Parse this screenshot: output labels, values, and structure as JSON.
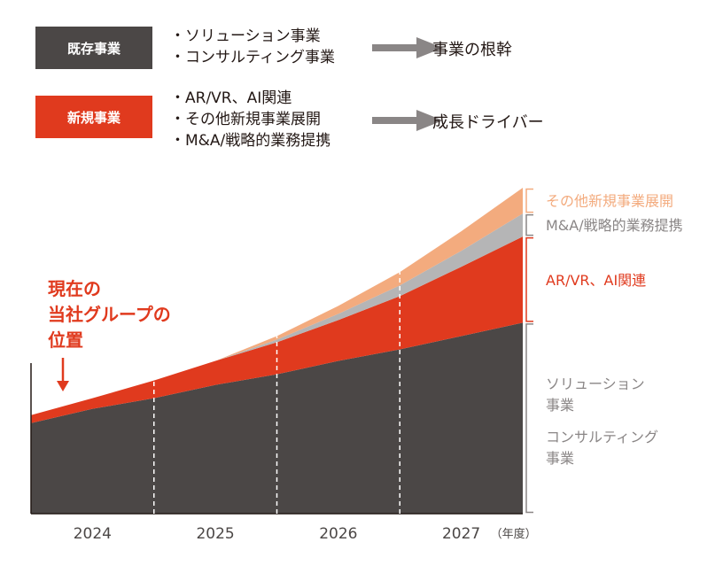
{
  "legend": {
    "existing": {
      "badge": "既存事業",
      "items": [
        "ソリューション事業",
        "コンサルティング事業"
      ],
      "result": "事業の根幹"
    },
    "new": {
      "badge": "新規事業",
      "items": [
        "AR/VR、AI関連",
        "その他新規事業展開",
        "M&A/戦略的業務提携"
      ],
      "result": "成長ドライバー"
    }
  },
  "colors": {
    "existing": "#4b4746",
    "arvr_ai": "#e03a1e",
    "ma": "#b5b5b6",
    "other_new": "#f3ab7e",
    "label_gray": "#8a8686",
    "arrow": "#8a8686"
  },
  "chart_data": {
    "type": "area",
    "stacked": true,
    "x_categories": [
      "2024",
      "2025",
      "2026",
      "2027"
    ],
    "x_unit": "（年度）",
    "annotation": {
      "lines": [
        "現在の",
        "当社グループの",
        "位置"
      ],
      "arrow": "down"
    },
    "series": [
      {
        "name": "ソリューション事業 / コンサルティング事業",
        "label_lines": [
          "ソリューション",
          "事業",
          "コンサルティング",
          "事業"
        ],
        "color_key": "existing",
        "points": [
          [
            0,
            102
          ],
          [
            0.5,
            118
          ],
          [
            1,
            130
          ],
          [
            1.5,
            145
          ],
          [
            2,
            157
          ],
          [
            2.5,
            172
          ],
          [
            3,
            185
          ],
          [
            3.5,
            200
          ],
          [
            4,
            215
          ]
        ]
      },
      {
        "name": "AR/VR、AI関連",
        "label_lines": [
          "AR/VR、AI関連"
        ],
        "color_key": "arvr_ai",
        "points": [
          [
            0,
            9
          ],
          [
            0.5,
            12
          ],
          [
            1,
            20
          ],
          [
            1.5,
            27
          ],
          [
            2,
            36
          ],
          [
            2.5,
            46
          ],
          [
            3,
            60
          ],
          [
            3.5,
            78
          ],
          [
            4,
            97
          ]
        ]
      },
      {
        "name": "M&A/戦略的業務提携",
        "label_lines": [
          "M&A/戦略的業務提携"
        ],
        "color_key": "ma",
        "points": [
          [
            0,
            0
          ],
          [
            0.5,
            0
          ],
          [
            1,
            0
          ],
          [
            1.5,
            0
          ],
          [
            2,
            3
          ],
          [
            2.5,
            7
          ],
          [
            3,
            12
          ],
          [
            3.5,
            18
          ],
          [
            4,
            26
          ]
        ]
      },
      {
        "name": "その他新規事業展開",
        "label_lines": [
          "その他新規事業展開"
        ],
        "color_key": "other_new",
        "points": [
          [
            0,
            0
          ],
          [
            0.5,
            0
          ],
          [
            1,
            0
          ],
          [
            1.5,
            0
          ],
          [
            2,
            4
          ],
          [
            2.5,
            9
          ],
          [
            3,
            15
          ],
          [
            3.5,
            22
          ],
          [
            4,
            29
          ]
        ]
      }
    ]
  }
}
